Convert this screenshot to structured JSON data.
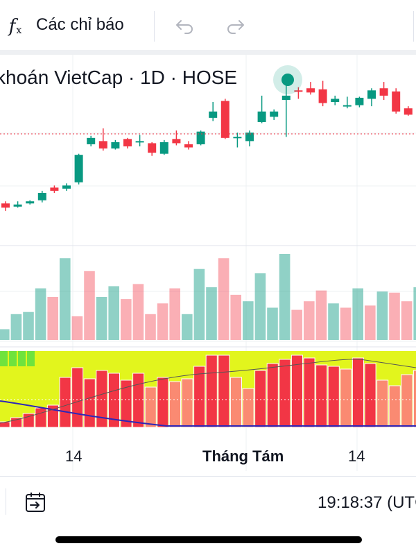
{
  "toolbar": {
    "indicators_label": "Các chỉ báo",
    "fx_label": "f",
    "fx_sub": "x",
    "undo_icon": "undo-arrow-icon",
    "redo_icon": "redo-arrow-icon"
  },
  "chart": {
    "title": "khoán VietCap · 1D · HOSE",
    "live_dot_color": "#089981",
    "up_color": "#089981",
    "down_color": "#f23645",
    "price_line_color": "#f23645"
  },
  "x_axis": {
    "labels": [
      "14",
      "Tháng Tám",
      "14"
    ]
  },
  "bottom_bar": {
    "date_range_icon": "calendar-range-icon",
    "clock": "19:18:37 (UTC"
  },
  "chart_data": {
    "type": "candlestick",
    "candles": [
      {
        "o": 11,
        "c": 7,
        "h": 13,
        "l": 4
      },
      {
        "o": 8,
        "c": 10,
        "h": 13,
        "l": 7
      },
      {
        "o": 11,
        "c": 13,
        "h": 14,
        "l": 10
      },
      {
        "o": 14,
        "c": 21,
        "h": 23,
        "l": 12
      },
      {
        "o": 26,
        "c": 23,
        "h": 28,
        "l": 21
      },
      {
        "o": 25,
        "c": 28,
        "h": 30,
        "l": 23
      },
      {
        "o": 31,
        "c": 57,
        "h": 58,
        "l": 29
      },
      {
        "o": 67,
        "c": 73,
        "h": 75,
        "l": 65
      },
      {
        "o": 70,
        "c": 63,
        "h": 82,
        "l": 61
      },
      {
        "o": 63,
        "c": 69,
        "h": 71,
        "l": 62
      },
      {
        "o": 72,
        "c": 65,
        "h": 73,
        "l": 63
      },
      {
        "o": 69,
        "c": 70,
        "h": 76,
        "l": 65
      },
      {
        "o": 68,
        "c": 59,
        "h": 69,
        "l": 56
      },
      {
        "o": 58,
        "c": 69,
        "h": 71,
        "l": 57
      },
      {
        "o": 72,
        "c": 68,
        "h": 80,
        "l": 66
      },
      {
        "o": 67,
        "c": 64,
        "h": 70,
        "l": 62
      },
      {
        "o": 67,
        "c": 79,
        "h": 80,
        "l": 66
      },
      {
        "o": 92,
        "c": 98,
        "h": 107,
        "l": 89
      },
      {
        "o": 108,
        "c": 73,
        "h": 110,
        "l": 72
      },
      {
        "o": 74,
        "c": 74,
        "h": 78,
        "l": 64
      },
      {
        "o": 70,
        "c": 78,
        "h": 80,
        "l": 65
      },
      {
        "o": 88,
        "c": 98,
        "h": 113,
        "l": 87
      },
      {
        "o": 93,
        "c": 98,
        "h": 100,
        "l": 90
      },
      {
        "o": 109,
        "c": 113,
        "h": 126,
        "l": 74
      },
      {
        "o": 118,
        "c": 117,
        "h": 121,
        "l": 110
      },
      {
        "o": 120,
        "c": 116,
        "h": 126,
        "l": 114
      },
      {
        "o": 119,
        "c": 106,
        "h": 127,
        "l": 103
      },
      {
        "o": 107,
        "c": 110,
        "h": 113,
        "l": 104
      },
      {
        "o": 104,
        "c": 104,
        "h": 112,
        "l": 101
      },
      {
        "o": 104,
        "c": 111,
        "h": 112,
        "l": 102
      },
      {
        "o": 110,
        "c": 118,
        "h": 120,
        "l": 103
      },
      {
        "o": 120,
        "c": 113,
        "h": 126,
        "l": 109
      },
      {
        "o": 117,
        "c": 98,
        "h": 120,
        "l": 96
      },
      {
        "o": 101,
        "c": 95,
        "h": 103,
        "l": 94
      },
      {
        "o": 99,
        "c": 112,
        "h": 113,
        "l": 81
      },
      {
        "o": 113,
        "c": 118,
        "h": 121,
        "l": 110
      }
    ],
    "volume": [
      {
        "v": 10,
        "up": true
      },
      {
        "v": 24,
        "up": true
      },
      {
        "v": 26,
        "up": true
      },
      {
        "v": 48,
        "up": true
      },
      {
        "v": 40,
        "up": false
      },
      {
        "v": 76,
        "up": true
      },
      {
        "v": 22,
        "up": false
      },
      {
        "v": 64,
        "up": false
      },
      {
        "v": 40,
        "up": true
      },
      {
        "v": 50,
        "up": true
      },
      {
        "v": 38,
        "up": false
      },
      {
        "v": 52,
        "up": false
      },
      {
        "v": 24,
        "up": false
      },
      {
        "v": 34,
        "up": false
      },
      {
        "v": 48,
        "up": false
      },
      {
        "v": 24,
        "up": true
      },
      {
        "v": 66,
        "up": true
      },
      {
        "v": 49,
        "up": true
      },
      {
        "v": 76,
        "up": false
      },
      {
        "v": 42,
        "up": false
      },
      {
        "v": 36,
        "up": true
      },
      {
        "v": 62,
        "up": true
      },
      {
        "v": 30,
        "up": true
      },
      {
        "v": 80,
        "up": true
      },
      {
        "v": 28,
        "up": false
      },
      {
        "v": 36,
        "up": false
      },
      {
        "v": 46,
        "up": false
      },
      {
        "v": 34,
        "up": true
      },
      {
        "v": 30,
        "up": false
      },
      {
        "v": 48,
        "up": true
      },
      {
        "v": 32,
        "up": false
      },
      {
        "v": 45,
        "up": true
      },
      {
        "v": 44,
        "up": false
      },
      {
        "v": 36,
        "up": false
      },
      {
        "v": 49,
        "up": true
      },
      {
        "v": 51,
        "up": false
      }
    ],
    "oscillator_bars": [
      {
        "v": 8,
        "c": "#f23645"
      },
      {
        "v": 14,
        "c": "#f23645"
      },
      {
        "v": 20,
        "c": "#f23645"
      },
      {
        "v": 28,
        "c": "#f23645"
      },
      {
        "v": 32,
        "c": "#f23645"
      },
      {
        "v": 72,
        "c": "#f23645"
      },
      {
        "v": 86,
        "c": "#f23645"
      },
      {
        "v": 70,
        "c": "#f23645"
      },
      {
        "v": 82,
        "c": "#f23645"
      },
      {
        "v": 78,
        "c": "#f23645"
      },
      {
        "v": 68,
        "c": "#f23645"
      },
      {
        "v": 78,
        "c": "#f23645"
      },
      {
        "v": 58,
        "c": "#fa8a72"
      },
      {
        "v": 72,
        "c": "#f23645"
      },
      {
        "v": 66,
        "c": "#fa8a72"
      },
      {
        "v": 70,
        "c": "#fa8a72"
      },
      {
        "v": 88,
        "c": "#f23645"
      },
      {
        "v": 104,
        "c": "#f23645"
      },
      {
        "v": 104,
        "c": "#f23645"
      },
      {
        "v": 72,
        "c": "#fa8a72"
      },
      {
        "v": 56,
        "c": "#fa8a72"
      },
      {
        "v": 82,
        "c": "#f23645"
      },
      {
        "v": 92,
        "c": "#f23645"
      },
      {
        "v": 98,
        "c": "#f23645"
      },
      {
        "v": 104,
        "c": "#f23645"
      },
      {
        "v": 100,
        "c": "#f23645"
      },
      {
        "v": 90,
        "c": "#f23645"
      },
      {
        "v": 88,
        "c": "#f23645"
      },
      {
        "v": 84,
        "c": "#fa8a72"
      },
      {
        "v": 100,
        "c": "#f23645"
      },
      {
        "v": 92,
        "c": "#f23645"
      },
      {
        "v": 68,
        "c": "#fa8a72"
      },
      {
        "v": 60,
        "c": "#fa8a72"
      },
      {
        "v": 76,
        "c": "#fa8a72"
      },
      {
        "v": 82,
        "c": "#fa8a72"
      },
      {
        "v": 88,
        "c": "#fa8a72"
      }
    ]
  }
}
